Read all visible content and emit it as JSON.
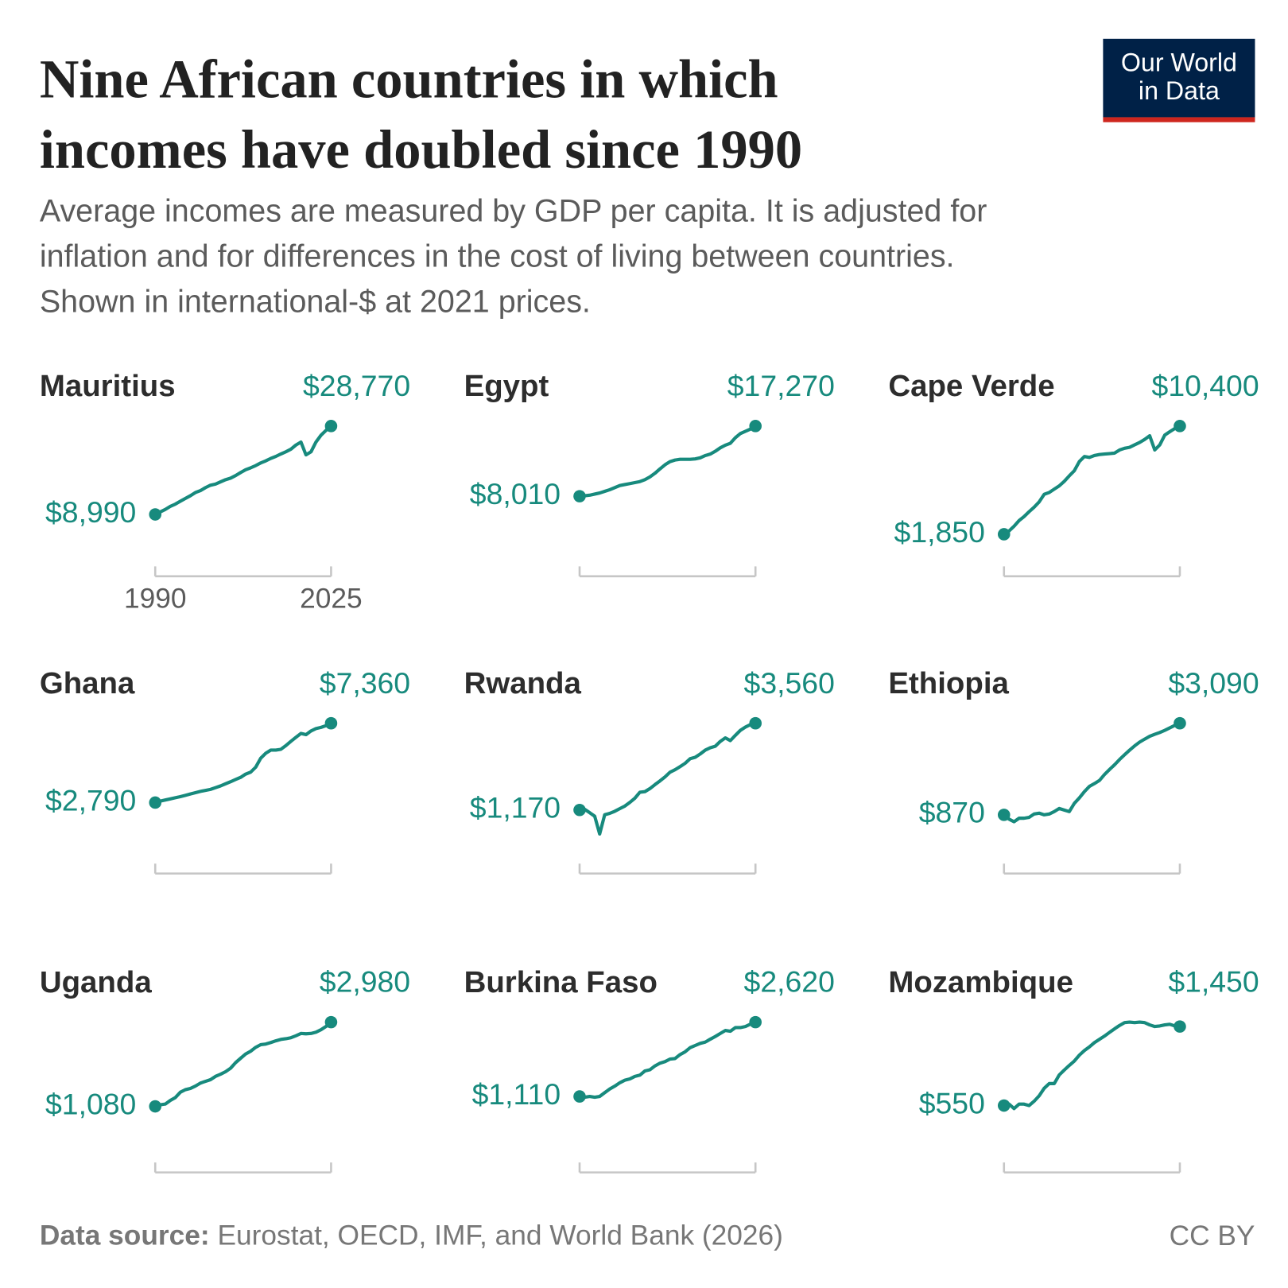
{
  "title_lines": [
    "Nine African countries in which",
    "incomes have doubled since 1990"
  ],
  "subtitle_lines": [
    "Average incomes are measured by GDP per capita. It is adjusted for",
    "inflation and for differences in the cost of living between countries.",
    "Shown in international-$ at 2021 prices."
  ],
  "logo_lines": [
    "Our World",
    "in Data"
  ],
  "source_label": "Data source:",
  "source": "Eurostat, OECD, IMF, and World Bank (2026)",
  "license": "CC BY",
  "chart_data": [
    {
      "type": "line",
      "title": "Mauritius",
      "color": "#178a7d",
      "log": true,
      "xlim": [
        1990,
        2025
      ],
      "xticks": [
        1990,
        2025
      ],
      "ylim": [
        6020,
        28770
      ],
      "x": [
        1990,
        1991,
        1992,
        1993,
        1994,
        1995,
        1996,
        1997,
        1998,
        1999,
        2000,
        2001,
        2002,
        2003,
        2004,
        2005,
        2006,
        2007,
        2008,
        2009,
        2010,
        2011,
        2012,
        2013,
        2014,
        2015,
        2016,
        2017,
        2018,
        2019,
        2020,
        2021,
        2022,
        2023,
        2024,
        2025
      ],
      "values": [
        8990,
        9300,
        9600,
        10000,
        10300,
        10700,
        11100,
        11500,
        12000,
        12300,
        12800,
        13200,
        13400,
        13800,
        14200,
        14500,
        15000,
        15600,
        16200,
        16600,
        17100,
        17700,
        18200,
        18800,
        19300,
        19900,
        20500,
        21200,
        22400,
        23300,
        19700,
        20500,
        23300,
        25500,
        27200,
        28770
      ],
      "value_labels": [
        "$8,990",
        null,
        null,
        null,
        null,
        null,
        null,
        null,
        null,
        null,
        null,
        null,
        null,
        null,
        null,
        null,
        null,
        null,
        null,
        null,
        null,
        null,
        null,
        null,
        null,
        null,
        null,
        null,
        null,
        null,
        null,
        null,
        null,
        null,
        null,
        "$28,770"
      ]
    },
    {
      "type": "line",
      "title": "Egypt",
      "color": "#178a7d",
      "log": true,
      "xlim": [
        1990,
        2025
      ],
      "ylim": [
        4700,
        17270
      ],
      "x": [
        1990,
        1991,
        1992,
        1993,
        1994,
        1995,
        1996,
        1997,
        1998,
        1999,
        2000,
        2001,
        2002,
        2003,
        2004,
        2005,
        2006,
        2007,
        2008,
        2009,
        2010,
        2011,
        2012,
        2013,
        2014,
        2015,
        2016,
        2017,
        2018,
        2019,
        2020,
        2021,
        2022,
        2023,
        2024,
        2025
      ],
      "values": [
        8010,
        8050,
        8100,
        8200,
        8300,
        8450,
        8600,
        8800,
        9000,
        9100,
        9200,
        9300,
        9400,
        9600,
        9900,
        10300,
        10800,
        11300,
        11700,
        11900,
        12000,
        12000,
        12000,
        12050,
        12200,
        12500,
        12700,
        13100,
        13600,
        14000,
        14300,
        15200,
        15900,
        16300,
        16700,
        17270
      ],
      "value_labels": [
        "$8,010",
        null,
        null,
        null,
        null,
        null,
        null,
        null,
        null,
        null,
        null,
        null,
        null,
        null,
        null,
        null,
        null,
        null,
        null,
        null,
        null,
        null,
        null,
        null,
        null,
        null,
        null,
        null,
        null,
        null,
        null,
        null,
        null,
        null,
        null,
        "$17,270"
      ]
    },
    {
      "type": "line",
      "title": "Cape Verde",
      "color": "#178a7d",
      "log": true,
      "xlim": [
        1990,
        2025
      ],
      "ylim": [
        1560,
        10400
      ],
      "x": [
        1990,
        1991,
        1992,
        1993,
        1994,
        1995,
        1996,
        1997,
        1998,
        1999,
        2000,
        2001,
        2002,
        2003,
        2004,
        2005,
        2006,
        2007,
        2008,
        2009,
        2010,
        2011,
        2012,
        2013,
        2014,
        2015,
        2016,
        2017,
        2018,
        2019,
        2020,
        2021,
        2022,
        2023,
        2024,
        2025
      ],
      "values": [
        1850,
        1950,
        2100,
        2300,
        2450,
        2650,
        2850,
        3100,
        3500,
        3600,
        3800,
        4000,
        4300,
        4700,
        5100,
        5900,
        6400,
        6300,
        6500,
        6600,
        6650,
        6700,
        6750,
        7100,
        7300,
        7400,
        7700,
        8000,
        8400,
        8900,
        7100,
        7700,
        9000,
        9500,
        10000,
        10400
      ],
      "value_labels": [
        "$1,850",
        null,
        null,
        null,
        null,
        null,
        null,
        null,
        null,
        null,
        null,
        null,
        null,
        null,
        null,
        null,
        null,
        null,
        null,
        null,
        null,
        null,
        null,
        null,
        null,
        null,
        null,
        null,
        null,
        null,
        null,
        null,
        null,
        null,
        null,
        "$10,400"
      ]
    },
    {
      "type": "line",
      "title": "Ghana",
      "color": "#178a7d",
      "log": true,
      "xlim": [
        1990,
        2025
      ],
      "ylim": [
        1720,
        7360
      ],
      "x": [
        1990,
        1991,
        1992,
        1993,
        1994,
        1995,
        1996,
        1997,
        1998,
        1999,
        2000,
        2001,
        2002,
        2003,
        2004,
        2005,
        2006,
        2007,
        2008,
        2009,
        2010,
        2011,
        2012,
        2013,
        2014,
        2015,
        2016,
        2017,
        2018,
        2019,
        2020,
        2021,
        2022,
        2023,
        2024,
        2025
      ],
      "values": [
        2790,
        2840,
        2880,
        2920,
        2960,
        3000,
        3050,
        3100,
        3150,
        3200,
        3240,
        3280,
        3350,
        3420,
        3510,
        3600,
        3700,
        3800,
        3950,
        4050,
        4300,
        4800,
        5100,
        5300,
        5300,
        5350,
        5600,
        5900,
        6200,
        6500,
        6400,
        6700,
        6900,
        7000,
        7150,
        7360
      ],
      "value_labels": [
        "$2,790",
        null,
        null,
        null,
        null,
        null,
        null,
        null,
        null,
        null,
        null,
        null,
        null,
        null,
        null,
        null,
        null,
        null,
        null,
        null,
        null,
        null,
        null,
        null,
        null,
        null,
        null,
        null,
        null,
        null,
        null,
        null,
        null,
        null,
        null,
        "$7,360"
      ]
    },
    {
      "type": "line",
      "title": "Rwanda",
      "color": "#178a7d",
      "log": true,
      "xlim": [
        1990,
        2025
      ],
      "ylim": [
        774,
        3560
      ],
      "x": [
        1990,
        1991,
        1992,
        1993,
        1994,
        1995,
        1996,
        1997,
        1998,
        1999,
        2000,
        2001,
        2002,
        2003,
        2004,
        2005,
        2006,
        2007,
        2008,
        2009,
        2010,
        2011,
        2012,
        2013,
        2014,
        2015,
        2016,
        2017,
        2018,
        2019,
        2020,
        2021,
        2022,
        2023,
        2024,
        2025
      ],
      "values": [
        1170,
        1180,
        1130,
        1080,
        860,
        1100,
        1120,
        1150,
        1190,
        1230,
        1290,
        1360,
        1470,
        1480,
        1540,
        1620,
        1700,
        1790,
        1900,
        1960,
        2040,
        2130,
        2260,
        2300,
        2400,
        2520,
        2600,
        2650,
        2820,
        2950,
        2850,
        3050,
        3250,
        3390,
        3500,
        3560
      ],
      "value_labels": [
        "$1,170",
        null,
        null,
        null,
        null,
        null,
        null,
        null,
        null,
        null,
        null,
        null,
        null,
        null,
        null,
        null,
        null,
        null,
        null,
        null,
        null,
        null,
        null,
        null,
        null,
        null,
        null,
        null,
        null,
        null,
        null,
        null,
        null,
        null,
        null,
        "$3,560"
      ]
    },
    {
      "type": "line",
      "title": "Ethiopia",
      "color": "#178a7d",
      "log": true,
      "xlim": [
        1990,
        2025
      ],
      "ylim": [
        596,
        3090
      ],
      "x": [
        1990,
        1991,
        1992,
        1993,
        1994,
        1995,
        1996,
        1997,
        1998,
        1999,
        2000,
        2001,
        2002,
        2003,
        2004,
        2005,
        2006,
        2007,
        2008,
        2009,
        2010,
        2011,
        2012,
        2013,
        2014,
        2015,
        2016,
        2017,
        2018,
        2019,
        2020,
        2021,
        2022,
        2023,
        2024,
        2025
      ],
      "values": [
        870,
        820,
        790,
        830,
        830,
        840,
        880,
        890,
        870,
        880,
        910,
        950,
        930,
        910,
        1020,
        1100,
        1200,
        1290,
        1340,
        1400,
        1520,
        1630,
        1740,
        1870,
        2000,
        2130,
        2260,
        2380,
        2480,
        2580,
        2650,
        2720,
        2800,
        2900,
        3000,
        3090
      ],
      "value_labels": [
        "$870",
        null,
        null,
        null,
        null,
        null,
        null,
        null,
        null,
        null,
        null,
        null,
        null,
        null,
        null,
        null,
        null,
        null,
        null,
        null,
        null,
        null,
        null,
        null,
        null,
        null,
        null,
        null,
        null,
        null,
        null,
        null,
        null,
        null,
        null,
        "$3,090"
      ]
    },
    {
      "type": "line",
      "title": "Uganda",
      "color": "#178a7d",
      "log": true,
      "xlim": [
        1990,
        2025
      ],
      "ylim": [
        711,
        2980
      ],
      "x": [
        1990,
        1991,
        1992,
        1993,
        1994,
        1995,
        1996,
        1997,
        1998,
        1999,
        2000,
        2001,
        2002,
        2003,
        2004,
        2005,
        2006,
        2007,
        2008,
        2009,
        2010,
        2011,
        2012,
        2013,
        2014,
        2015,
        2016,
        2017,
        2018,
        2019,
        2020,
        2021,
        2022,
        2023,
        2024,
        2025
      ],
      "values": [
        1080,
        1100,
        1110,
        1160,
        1200,
        1280,
        1320,
        1340,
        1380,
        1430,
        1460,
        1490,
        1550,
        1590,
        1640,
        1710,
        1830,
        1930,
        2030,
        2100,
        2200,
        2270,
        2290,
        2330,
        2380,
        2420,
        2440,
        2470,
        2530,
        2600,
        2590,
        2600,
        2640,
        2720,
        2830,
        2980
      ],
      "value_labels": [
        "$1,080",
        null,
        null,
        null,
        null,
        null,
        null,
        null,
        null,
        null,
        null,
        null,
        null,
        null,
        null,
        null,
        null,
        null,
        null,
        null,
        null,
        null,
        null,
        null,
        null,
        null,
        null,
        null,
        null,
        null,
        null,
        null,
        null,
        null,
        null,
        "$2,980"
      ]
    },
    {
      "type": "line",
      "title": "Burkina Faso",
      "color": "#178a7d",
      "log": true,
      "xlim": [
        1990,
        2025
      ],
      "ylim": [
        663,
        2620
      ],
      "x": [
        1990,
        1991,
        1992,
        1993,
        1994,
        1995,
        1996,
        1997,
        1998,
        1999,
        2000,
        2001,
        2002,
        2003,
        2004,
        2005,
        2006,
        2007,
        2008,
        2009,
        2010,
        2011,
        2012,
        2013,
        2014,
        2015,
        2016,
        2017,
        2018,
        2019,
        2020,
        2021,
        2022,
        2023,
        2024,
        2025
      ],
      "values": [
        1110,
        1100,
        1110,
        1100,
        1110,
        1160,
        1210,
        1250,
        1300,
        1340,
        1360,
        1400,
        1420,
        1490,
        1510,
        1580,
        1630,
        1660,
        1710,
        1720,
        1800,
        1860,
        1950,
        2000,
        2050,
        2080,
        2150,
        2220,
        2300,
        2380,
        2360,
        2460,
        2460,
        2490,
        2560,
        2620
      ],
      "value_labels": [
        "$1,110",
        null,
        null,
        null,
        null,
        null,
        null,
        null,
        null,
        null,
        null,
        null,
        null,
        null,
        null,
        null,
        null,
        null,
        null,
        null,
        null,
        null,
        null,
        null,
        null,
        null,
        null,
        null,
        null,
        null,
        null,
        null,
        null,
        null,
        null,
        "$2,620"
      ]
    },
    {
      "type": "line",
      "title": "Mozambique",
      "color": "#178a7d",
      "log": true,
      "xlim": [
        1990,
        2025
      ],
      "ylim": [
        356,
        1530
      ],
      "x": [
        1990,
        1991,
        1992,
        1993,
        1994,
        1995,
        1996,
        1997,
        1998,
        1999,
        2000,
        2001,
        2002,
        2003,
        2004,
        2005,
        2006,
        2007,
        2008,
        2009,
        2010,
        2011,
        2012,
        2013,
        2014,
        2015,
        2016,
        2017,
        2018,
        2019,
        2020,
        2021,
        2022,
        2023,
        2024,
        2025
      ],
      "values": [
        550,
        560,
        530,
        560,
        560,
        550,
        580,
        620,
        680,
        720,
        720,
        800,
        850,
        900,
        950,
        1020,
        1080,
        1130,
        1190,
        1240,
        1290,
        1350,
        1410,
        1470,
        1520,
        1530,
        1520,
        1530,
        1520,
        1480,
        1450,
        1460,
        1480,
        1490,
        1460,
        1450
      ],
      "value_labels": [
        "$550",
        null,
        null,
        null,
        null,
        null,
        null,
        null,
        null,
        null,
        null,
        null,
        null,
        null,
        null,
        null,
        null,
        null,
        null,
        null,
        null,
        null,
        null,
        null,
        null,
        null,
        null,
        null,
        null,
        null,
        null,
        null,
        null,
        null,
        null,
        "$1,450"
      ]
    }
  ]
}
